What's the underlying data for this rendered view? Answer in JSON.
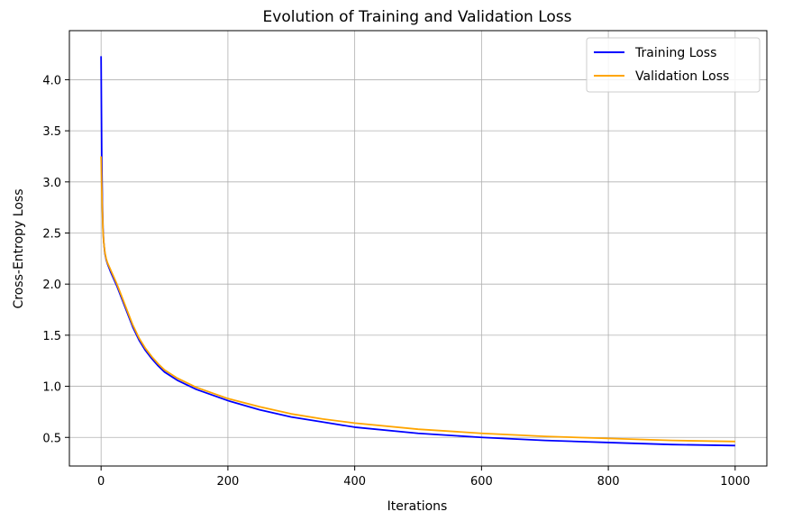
{
  "chart_data": {
    "type": "line",
    "title": "Evolution of Training and Validation Loss",
    "xlabel": "Iterations",
    "ylabel": "Cross-Entropy Loss",
    "xlim": [
      -50,
      1050
    ],
    "ylim": [
      0.22,
      4.48
    ],
    "xticks": [
      0,
      200,
      400,
      600,
      800,
      1000
    ],
    "xtick_labels": [
      "0",
      "200",
      "400",
      "600",
      "800",
      "1000"
    ],
    "yticks": [
      0.5,
      1.0,
      1.5,
      2.0,
      2.5,
      3.0,
      3.5,
      4.0
    ],
    "ytick_labels": [
      "0.5",
      "1.0",
      "1.5",
      "2.0",
      "2.5",
      "3.0",
      "3.5",
      "4.0"
    ],
    "grid": true,
    "legend_position": "top-right",
    "series": [
      {
        "name": "Training Loss",
        "color": "#0000ff",
        "x": [
          0,
          1,
          2,
          3,
          4,
          6,
          8,
          10,
          15,
          20,
          25,
          30,
          40,
          50,
          60,
          70,
          80,
          90,
          100,
          120,
          150,
          200,
          250,
          300,
          350,
          400,
          500,
          600,
          700,
          800,
          900,
          1000
        ],
        "y": [
          4.23,
          3.25,
          2.8,
          2.55,
          2.42,
          2.3,
          2.24,
          2.2,
          2.12,
          2.05,
          1.98,
          1.9,
          1.74,
          1.58,
          1.45,
          1.35,
          1.27,
          1.2,
          1.14,
          1.06,
          0.97,
          0.86,
          0.77,
          0.7,
          0.65,
          0.6,
          0.54,
          0.5,
          0.47,
          0.45,
          0.43,
          0.42
        ]
      },
      {
        "name": "Validation Loss",
        "color": "#ffa500",
        "x": [
          0,
          1,
          2,
          3,
          4,
          6,
          8,
          10,
          15,
          20,
          25,
          30,
          40,
          50,
          60,
          70,
          80,
          90,
          100,
          120,
          150,
          200,
          250,
          300,
          350,
          400,
          500,
          600,
          700,
          800,
          900,
          1000
        ],
        "y": [
          3.25,
          2.95,
          2.72,
          2.52,
          2.42,
          2.31,
          2.25,
          2.21,
          2.14,
          2.07,
          2.0,
          1.92,
          1.76,
          1.6,
          1.47,
          1.37,
          1.29,
          1.22,
          1.16,
          1.08,
          0.99,
          0.88,
          0.8,
          0.73,
          0.68,
          0.64,
          0.58,
          0.54,
          0.51,
          0.49,
          0.47,
          0.46
        ]
      }
    ]
  }
}
